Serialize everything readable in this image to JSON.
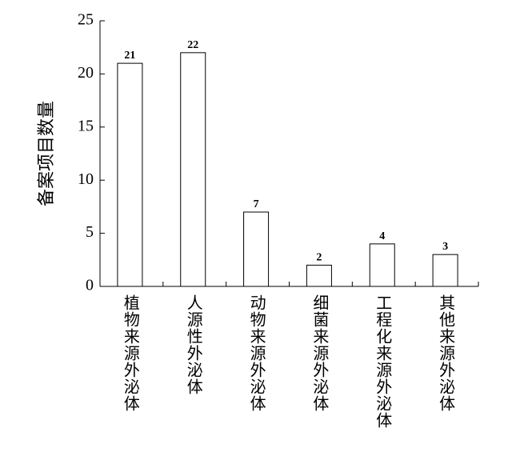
{
  "chart_data": {
    "type": "bar",
    "y_label": "备案项目数量",
    "categories": [
      "植物来源外泌体",
      "人源性外泌体",
      "动物来源外泌体",
      "细菌来源外泌体",
      "工程化来源外泌体",
      "其他来源外泌体"
    ],
    "values": [
      21,
      22,
      7,
      2,
      4,
      3
    ],
    "color": "#ffffff",
    "ylim": [
      0,
      25
    ],
    "yticks": [
      0,
      5,
      10,
      15,
      20,
      25
    ],
    "grid": false
  }
}
